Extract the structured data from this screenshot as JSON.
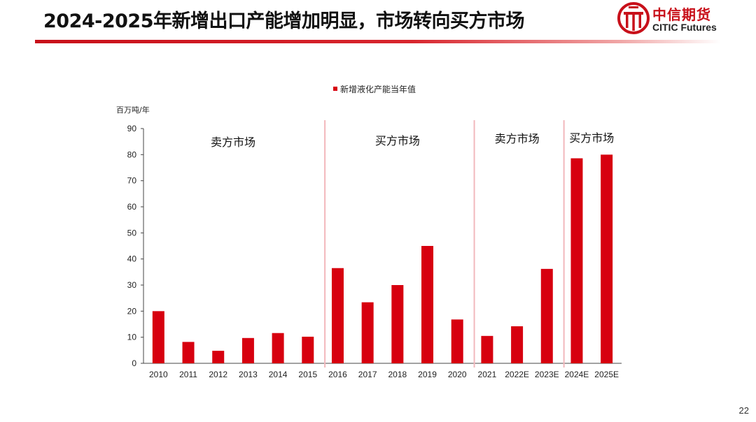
{
  "header": {
    "title": "2024-2025年新增出口产能增加明显，市场转向买方市场",
    "logo_cn": "中信期货",
    "logo_en": "CITIC Futures"
  },
  "page_number": "22",
  "chart_data": {
    "type": "bar",
    "unit_label": "百万吨/年",
    "legend": [
      "新增液化产能当年值"
    ],
    "legend_position": "top-center",
    "grid": false,
    "categories": [
      "2010",
      "2011",
      "2012",
      "2013",
      "2014",
      "2015",
      "2016",
      "2017",
      "2018",
      "2019",
      "2020",
      "2021",
      "2022E",
      "2023E",
      "2024E",
      "2025E"
    ],
    "series": [
      {
        "name": "新增液化产能当年值",
        "color": "#d7000f",
        "values": [
          20,
          8.2,
          4.8,
          9.7,
          11.6,
          10.2,
          36.5,
          23.4,
          30,
          45,
          16.8,
          10.5,
          14.2,
          36.2,
          78.6,
          80
        ]
      }
    ],
    "ylim": [
      0,
      90
    ],
    "yticks": [
      0,
      10,
      20,
      30,
      40,
      50,
      60,
      70,
      80,
      90
    ],
    "annotations": [
      {
        "text": "卖方市场",
        "span": [
          "2010",
          "2015"
        ]
      },
      {
        "text": "买方市场",
        "span": [
          "2016",
          "2020"
        ]
      },
      {
        "text": "卖方市场",
        "span": [
          "2021",
          "2023E"
        ]
      },
      {
        "text": "买方市场",
        "span": [
          "2024E",
          "2025E"
        ]
      }
    ],
    "divider_after": [
      "2015",
      "2020",
      "2023E"
    ],
    "divider_color": "#f2b8bc"
  }
}
